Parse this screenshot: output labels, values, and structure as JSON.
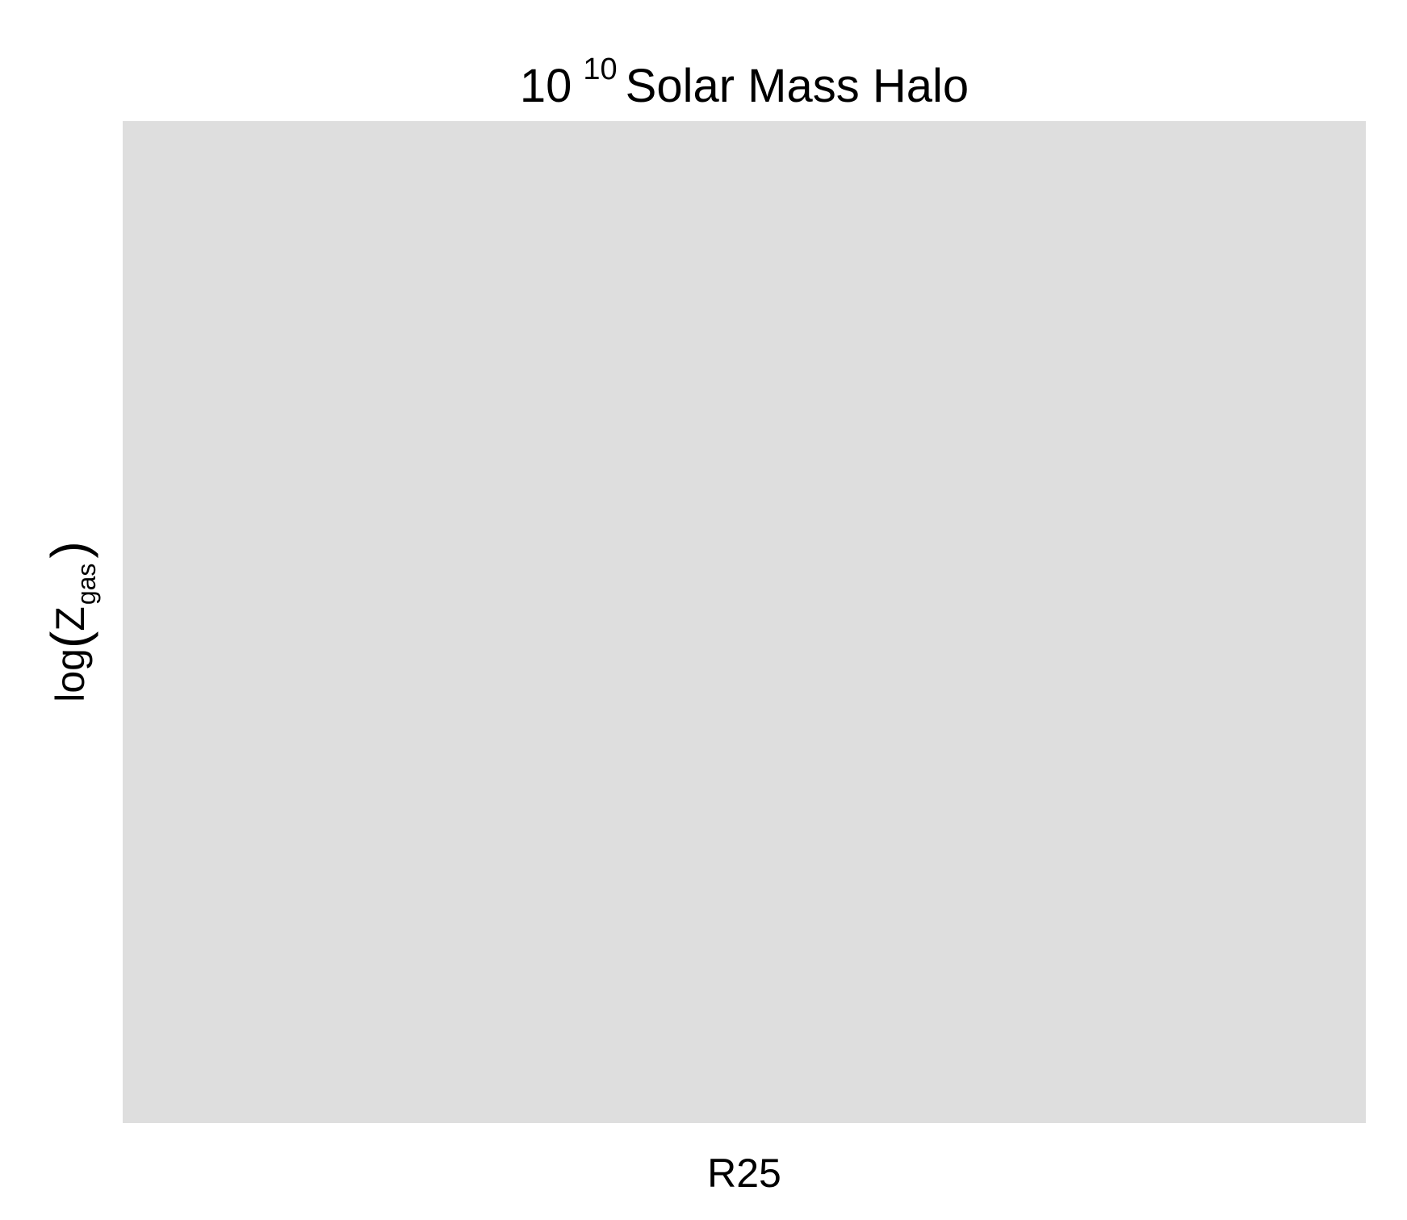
{
  "chart_data": {
    "type": "scatter",
    "title": {
      "base": "10",
      "exponent": "10",
      "rest": "Solar Mass Halo"
    },
    "xlabel": "R25",
    "ylabel": {
      "fn": "log",
      "open": "(",
      "var": "Z",
      "sub": "gas",
      "close": ")"
    },
    "series": [],
    "grid": false,
    "panel_background": "#dedede"
  }
}
